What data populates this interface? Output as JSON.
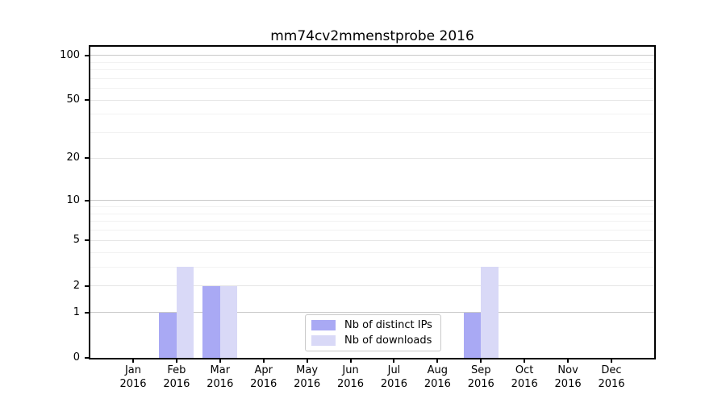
{
  "chart_data": {
    "type": "bar",
    "title": "mm74cv2mmenstprobe 2016",
    "x": [
      "Jan",
      "Feb",
      "Mar",
      "Apr",
      "May",
      "Jun",
      "Jul",
      "Aug",
      "Sep",
      "Oct",
      "Nov",
      "Dec"
    ],
    "x_year": "2016",
    "series": [
      {
        "name": "Nb of distinct IPs",
        "color": "#a9a9f4",
        "values": [
          0,
          1,
          2,
          0,
          0,
          0,
          0,
          0,
          1,
          0,
          0,
          0
        ]
      },
      {
        "name": "Nb of downloads",
        "color": "#d9d9f7",
        "values": [
          0,
          3,
          2,
          0,
          0,
          0,
          0,
          0,
          3,
          0,
          0,
          0
        ]
      }
    ],
    "y_axis": {
      "scale": "log1p",
      "tick_values": [
        0,
        1,
        2,
        5,
        10,
        20,
        50,
        100
      ],
      "emphasized_gridlines": [
        1,
        10,
        100
      ],
      "major_gridlines": [
        2,
        5,
        20,
        50
      ],
      "minor_gridlines": [
        3,
        4,
        6,
        7,
        8,
        9,
        30,
        40,
        60,
        70,
        80,
        90
      ],
      "ylim": [
        0,
        113
      ]
    },
    "legend_position": "bottom-center",
    "grid": "horizontal-only"
  }
}
